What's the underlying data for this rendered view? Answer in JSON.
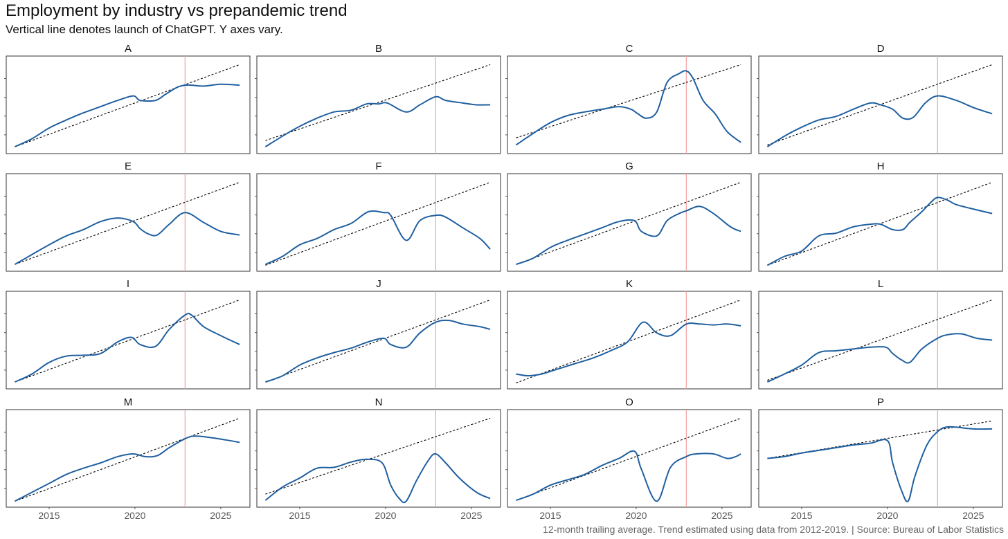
{
  "title": "Employment by industry vs prepandemic trend",
  "subtitle": "Vertical line denotes launch of ChatGPT. Y axes vary.",
  "caption": "12-month trailing average. Trend estimated using data from 2012-2019. | Source: Bureau of Labor Statistics",
  "colors": {
    "series": "#1f5fa0",
    "trend": "#000000",
    "vline": "#f2a0a0",
    "frame": "#333333",
    "tick": "#555555"
  },
  "chart_data": {
    "type": "line",
    "layout": "small multiples, 4 rows x 4 columns",
    "x_ticks": [
      2015,
      2020,
      2025
    ],
    "xlim": [
      2012.5,
      2026.7
    ],
    "vline_x": 2022.92,
    "y_axis": "free scales (no tick labels)",
    "panels": [
      {
        "label": "A",
        "ylim": [
          0,
          100
        ],
        "trend": {
          "x": [
            2013.0,
            2026.1
          ],
          "y": [
            3,
            95
          ]
        },
        "series": {
          "x": [
            2013.0,
            2014,
            2015,
            2016,
            2017,
            2018,
            2019,
            2019.9,
            2020.3,
            2021.2,
            2021.8,
            2022.5,
            2022.92,
            2023.3,
            2024,
            2025,
            2026.1
          ],
          "y": [
            3,
            12,
            24,
            33,
            41,
            48,
            55,
            60,
            55,
            55,
            62,
            70,
            72,
            72,
            71,
            73,
            72
          ]
        }
      },
      {
        "label": "B",
        "ylim": [
          0,
          100
        ],
        "trend": {
          "x": [
            2013.0,
            2026.1
          ],
          "y": [
            10,
            95
          ]
        },
        "series": {
          "x": [
            2013.0,
            2014,
            2015,
            2016,
            2017,
            2018,
            2018.9,
            2019.6,
            2020.1,
            2021.2,
            2022,
            2022.92,
            2023.5,
            2024.5,
            2025.3,
            2026.1
          ],
          "y": [
            3,
            15,
            26,
            35,
            42,
            44,
            51,
            51,
            52,
            42,
            50,
            59,
            55,
            52,
            50,
            50
          ]
        }
      },
      {
        "label": "C",
        "ylim": [
          0,
          100
        ],
        "trend": {
          "x": [
            2013.0,
            2026.1
          ],
          "y": [
            13,
            95
          ]
        },
        "series": {
          "x": [
            2013.0,
            2014,
            2015,
            2016,
            2017,
            2018,
            2019,
            2019.7,
            2020.1,
            2020.6,
            2021.2,
            2021.8,
            2022.5,
            2022.92,
            2023.3,
            2023.9,
            2024.6,
            2025.3,
            2026.1
          ],
          "y": [
            5,
            18,
            30,
            38,
            42,
            45,
            48,
            45,
            40,
            35,
            42,
            75,
            85,
            88,
            80,
            55,
            40,
            20,
            8
          ]
        }
      },
      {
        "label": "D",
        "ylim": [
          0,
          100
        ],
        "trend": {
          "x": [
            2013.0,
            2026.1
          ],
          "y": [
            5,
            95
          ]
        },
        "series": {
          "x": [
            2013.0,
            2014,
            2015,
            2016,
            2017,
            2018,
            2019,
            2019.6,
            2020.3,
            2020.9,
            2021.5,
            2022.2,
            2022.92,
            2024,
            2025,
            2026.1
          ],
          "y": [
            3,
            15,
            25,
            33,
            37,
            45,
            52,
            50,
            45,
            35,
            36,
            52,
            60,
            55,
            47,
            40
          ]
        }
      },
      {
        "label": "E",
        "ylim": [
          0,
          100
        ],
        "trend": {
          "x": [
            2013.0,
            2026.1
          ],
          "y": [
            3,
            95
          ]
        },
        "series": {
          "x": [
            2013.0,
            2014,
            2015,
            2016,
            2017,
            2018,
            2019,
            2019.9,
            2020.3,
            2020.8,
            2021.3,
            2022,
            2022.92,
            2024,
            2025,
            2026.1
          ],
          "y": [
            3,
            14,
            25,
            35,
            42,
            51,
            55,
            51,
            43,
            37,
            36,
            48,
            61,
            50,
            40,
            36
          ]
        }
      },
      {
        "label": "F",
        "ylim": [
          0,
          100
        ],
        "trend": {
          "x": [
            2013.0,
            2026.1
          ],
          "y": [
            2,
            95
          ]
        },
        "series": {
          "x": [
            2013.0,
            2014,
            2015,
            2016,
            2017,
            2018,
            2019,
            2019.9,
            2020.3,
            2021.2,
            2022,
            2022.92,
            2023.5,
            2024.5,
            2025.5,
            2026.1
          ],
          "y": [
            3,
            12,
            25,
            32,
            42,
            49,
            62,
            61,
            58,
            30,
            52,
            58,
            56,
            44,
            32,
            20
          ]
        }
      },
      {
        "label": "G",
        "ylim": [
          0,
          100
        ],
        "trend": {
          "x": [
            2013.0,
            2026.1
          ],
          "y": [
            3,
            95
          ]
        },
        "series": {
          "x": [
            2013.0,
            2014,
            2015,
            2016,
            2017,
            2018,
            2019,
            2019.9,
            2020.3,
            2021.2,
            2021.8,
            2022.5,
            2022.92,
            2023.7,
            2024.5,
            2025.5,
            2026.1
          ],
          "y": [
            3,
            10,
            22,
            30,
            37,
            44,
            51,
            52,
            40,
            35,
            52,
            60,
            63,
            68,
            60,
            45,
            40
          ]
        }
      },
      {
        "label": "H",
        "ylim": [
          0,
          100
        ],
        "trend": {
          "x": [
            2013.0,
            2026.1
          ],
          "y": [
            2,
            95
          ]
        },
        "series": {
          "x": [
            2013.0,
            2014,
            2015,
            2016,
            2017,
            2018,
            2019,
            2019.6,
            2020.3,
            2020.9,
            2021.3,
            2022,
            2022.5,
            2022.92,
            2023.5,
            2024,
            2025,
            2026.1
          ],
          "y": [
            2,
            12,
            18,
            35,
            38,
            45,
            48,
            48,
            42,
            42,
            50,
            62,
            72,
            78,
            75,
            70,
            65,
            60
          ]
        }
      },
      {
        "label": "I",
        "ylim": [
          0,
          100
        ],
        "trend": {
          "x": [
            2013.0,
            2026.1
          ],
          "y": [
            3,
            95
          ]
        },
        "series": {
          "x": [
            2013.0,
            2014,
            2015,
            2016,
            2017,
            2018,
            2019,
            2019.8,
            2020.3,
            2021.2,
            2022,
            2022.92,
            2023.3,
            2024,
            2025,
            2026.1
          ],
          "y": [
            3,
            12,
            25,
            32,
            33,
            35,
            48,
            53,
            45,
            43,
            62,
            78,
            78,
            65,
            55,
            45
          ]
        }
      },
      {
        "label": "J",
        "ylim": [
          0,
          100
        ],
        "trend": {
          "x": [
            2013.0,
            2026.1
          ],
          "y": [
            3,
            95
          ]
        },
        "series": {
          "x": [
            2013.0,
            2014,
            2015,
            2016,
            2017,
            2018,
            2019,
            2019.9,
            2020.3,
            2021.2,
            2022,
            2022.92,
            2023.7,
            2024.5,
            2025.5,
            2026.1
          ],
          "y": [
            3,
            10,
            22,
            30,
            36,
            41,
            48,
            52,
            45,
            42,
            58,
            70,
            72,
            68,
            65,
            62
          ]
        }
      },
      {
        "label": "K",
        "ylim": [
          0,
          100
        ],
        "trend": {
          "x": [
            2013.0,
            2026.1
          ],
          "y": [
            2,
            95
          ]
        },
        "series": {
          "x": [
            2013.0,
            2013.7,
            2014.5,
            2015.5,
            2016.5,
            2017.5,
            2018.5,
            2019.5,
            2020.4,
            2021.2,
            2022,
            2022.92,
            2023.7,
            2024.5,
            2025.3,
            2026.1
          ],
          "y": [
            12,
            10,
            12,
            18,
            24,
            30,
            38,
            48,
            70,
            58,
            55,
            68,
            68,
            67,
            68,
            66
          ]
        }
      },
      {
        "label": "L",
        "ylim": [
          0,
          100
        ],
        "trend": {
          "x": [
            2013.0,
            2026.1
          ],
          "y": [
            5,
            95
          ]
        },
        "series": {
          "x": [
            2013.0,
            2014,
            2015,
            2016,
            2017,
            2018,
            2019,
            2019.9,
            2020.3,
            2020.8,
            2021.3,
            2022,
            2022.92,
            2023.5,
            2024.3,
            2025.2,
            2026.1
          ],
          "y": [
            3,
            12,
            22,
            36,
            38,
            40,
            42,
            42,
            35,
            28,
            25,
            40,
            52,
            56,
            57,
            52,
            50
          ]
        }
      },
      {
        "label": "M",
        "ylim": [
          0,
          100
        ],
        "trend": {
          "x": [
            2013.0,
            2026.1
          ],
          "y": [
            2,
            95
          ]
        },
        "series": {
          "x": [
            2013.0,
            2014,
            2015,
            2016,
            2017,
            2018,
            2019,
            2019.9,
            2020.6,
            2021.3,
            2022,
            2022.92,
            2023.5,
            2024.5,
            2025.5,
            2026.1
          ],
          "y": [
            2,
            12,
            22,
            32,
            39,
            45,
            52,
            55,
            52,
            53,
            62,
            72,
            75,
            73,
            70,
            68
          ]
        }
      },
      {
        "label": "N",
        "ylim": [
          0,
          100
        ],
        "trend": {
          "x": [
            2013.0,
            2026.1
          ],
          "y": [
            10,
            95
          ]
        },
        "series": {
          "x": [
            2013.0,
            2014,
            2015,
            2016,
            2017,
            2018,
            2018.9,
            2019.8,
            2020.3,
            2020.8,
            2021.2,
            2021.8,
            2022.5,
            2022.92,
            2023.5,
            2024.3,
            2025.3,
            2026.1
          ],
          "y": [
            3,
            18,
            28,
            39,
            40,
            46,
            49,
            45,
            20,
            5,
            2,
            25,
            48,
            55,
            45,
            28,
            12,
            5
          ]
        }
      },
      {
        "label": "O",
        "ylim": [
          0,
          100
        ],
        "trend": {
          "x": [
            2013.0,
            2026.1
          ],
          "y": [
            3,
            95
          ]
        },
        "series": {
          "x": [
            2013.0,
            2014,
            2015,
            2016,
            2017,
            2018,
            2019,
            2019.9,
            2020.3,
            2021.2,
            2022,
            2022.92,
            2023.5,
            2024.5,
            2025.3,
            2025.8,
            2026.1
          ],
          "y": [
            3,
            10,
            20,
            26,
            32,
            42,
            50,
            58,
            38,
            2,
            40,
            52,
            55,
            55,
            50,
            52,
            55
          ]
        }
      },
      {
        "label": "P",
        "ylim": [
          0,
          100
        ],
        "trend": {
          "x": [
            2013.0,
            2026.1
          ],
          "y": [
            50,
            92
          ]
        },
        "series": {
          "x": [
            2013.0,
            2014,
            2015,
            2016,
            2017,
            2018,
            2019,
            2020,
            2020.3,
            2020.8,
            2021.2,
            2021.6,
            2022.3,
            2022.92,
            2023.4,
            2024,
            2025,
            2026.1
          ],
          "y": [
            50,
            52,
            56,
            59,
            62,
            65,
            67,
            70,
            45,
            15,
            2,
            30,
            65,
            80,
            85,
            85,
            83,
            83
          ]
        }
      }
    ]
  }
}
